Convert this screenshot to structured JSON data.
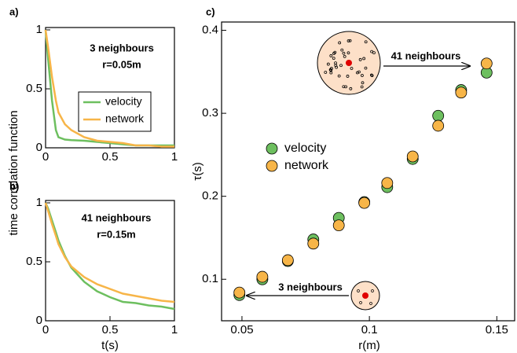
{
  "chart_data": [
    {
      "type": "line",
      "label": "a)",
      "ylabel": "time correlation function",
      "annotations": [
        "3 neighbours",
        "r=0.05m"
      ],
      "x": [
        0,
        0.02,
        0.05,
        0.08,
        0.1,
        0.15,
        0.2,
        0.3,
        0.4,
        0.5,
        0.6,
        0.7,
        0.8,
        0.9,
        1
      ],
      "series": [
        {
          "name": "velocity",
          "color": "#6dbf5f",
          "values": [
            1,
            0.75,
            0.4,
            0.15,
            0.09,
            0.07,
            0.065,
            0.06,
            0.05,
            0.04,
            0.03,
            0.02,
            0.02,
            0.02,
            0.02
          ]
        },
        {
          "name": "network",
          "color": "#f7b548",
          "values": [
            1,
            0.85,
            0.6,
            0.4,
            0.3,
            0.2,
            0.15,
            0.09,
            0.06,
            0.05,
            0.04,
            0.02,
            0.02,
            0.01,
            0.01
          ]
        }
      ],
      "xlim": [
        0,
        1
      ],
      "ylim": [
        0,
        1.02
      ],
      "xticks": [
        0,
        0.5,
        1
      ],
      "yticks": [
        0,
        0.5,
        1
      ],
      "legend": "center"
    },
    {
      "type": "line",
      "label": "b)",
      "xlabel": "t(s)",
      "annotations": [
        "41 neighbours",
        "r=0.15m"
      ],
      "x": [
        0,
        0.02,
        0.05,
        0.08,
        0.1,
        0.15,
        0.2,
        0.3,
        0.4,
        0.5,
        0.6,
        0.7,
        0.8,
        0.9,
        1
      ],
      "series": [
        {
          "name": "velocity",
          "color": "#6dbf5f",
          "values": [
            1,
            0.95,
            0.85,
            0.75,
            0.68,
            0.55,
            0.45,
            0.33,
            0.25,
            0.2,
            0.16,
            0.15,
            0.13,
            0.12,
            0.1
          ]
        },
        {
          "name": "network",
          "color": "#f7b548",
          "values": [
            1,
            0.93,
            0.82,
            0.72,
            0.65,
            0.54,
            0.46,
            0.37,
            0.31,
            0.27,
            0.23,
            0.21,
            0.19,
            0.17,
            0.16
          ]
        }
      ],
      "xlim": [
        0,
        1
      ],
      "ylim": [
        0,
        1.02
      ],
      "xticks": [
        0,
        0.5,
        1
      ],
      "yticks": [
        0,
        0.5,
        1
      ]
    },
    {
      "type": "scatter",
      "label": "c)",
      "xlabel": "r(m)",
      "ylabel": "τ(s)",
      "annotations": [
        "41 neighbours",
        "3 neighbours"
      ],
      "x": [
        0.049,
        0.058,
        0.068,
        0.078,
        0.088,
        0.098,
        0.107,
        0.117,
        0.127,
        0.136,
        0.146
      ],
      "series": [
        {
          "name": "velocity",
          "color": "#6dbf5f",
          "values": [
            0.081,
            0.1,
            0.122,
            0.148,
            0.174,
            0.193,
            0.211,
            0.245,
            0.297,
            0.328,
            0.349
          ]
        },
        {
          "name": "network",
          "color": "#f7b548",
          "values": [
            0.084,
            0.103,
            0.123,
            0.143,
            0.165,
            0.192,
            0.216,
            0.248,
            0.285,
            0.325,
            0.36
          ]
        }
      ],
      "xlim": [
        0.042,
        0.157
      ],
      "ylim": [
        0.05,
        0.41
      ],
      "xticks": [
        0.05,
        0.1,
        0.15
      ],
      "yticks": [
        0.1,
        0.2,
        0.3,
        0.4
      ],
      "legend": "left"
    }
  ]
}
